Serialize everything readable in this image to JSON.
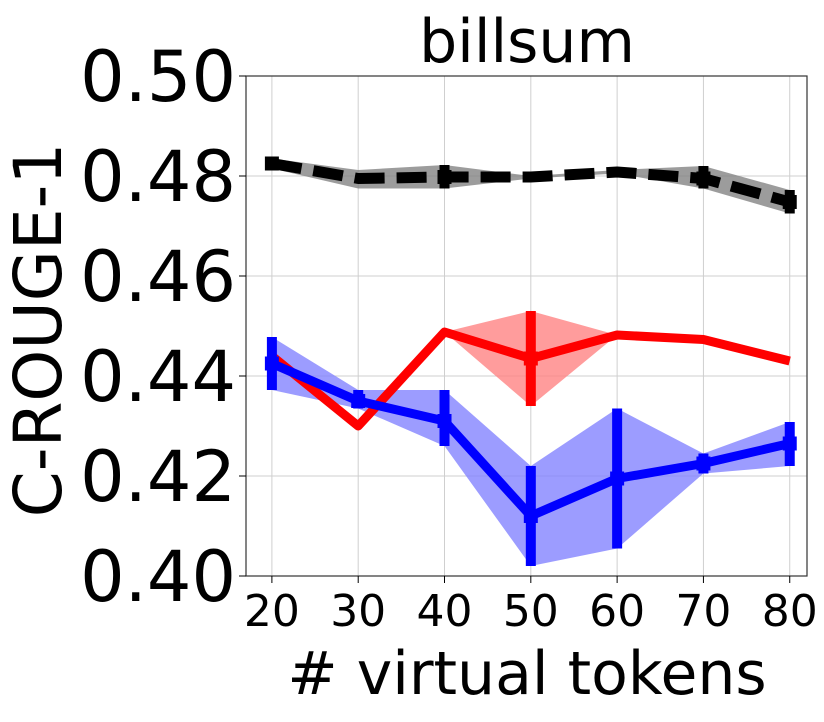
{
  "chart_data": {
    "type": "line",
    "title": "billsum",
    "xlabel": "# virtual tokens",
    "ylabel": "C-ROUGE-1",
    "x": [
      20,
      30,
      40,
      50,
      60,
      70,
      80
    ],
    "xlim": [
      17,
      82
    ],
    "ylim": [
      0.4,
      0.5
    ],
    "xticks": [
      "20",
      "30",
      "40",
      "50",
      "60",
      "70",
      "80"
    ],
    "yticks": [
      "0.40",
      "0.42",
      "0.44",
      "0.46",
      "0.48",
      "0.50"
    ],
    "grid": true,
    "series": [
      {
        "color": "#000000",
        "band_color": "#808080",
        "style": "dashed",
        "values": [
          0.4825,
          0.4795,
          0.4798,
          0.4798,
          0.4808,
          0.4795,
          0.4748
        ],
        "lower": [
          0.4815,
          0.4775,
          0.4775,
          0.4795,
          0.4805,
          0.4775,
          0.4725
        ],
        "upper": [
          0.4835,
          0.4812,
          0.4822,
          0.48,
          0.4812,
          0.482,
          0.4772
        ],
        "error_bars": [
          true,
          false,
          true,
          false,
          false,
          true,
          true
        ]
      },
      {
        "color": "#ff0000",
        "band_color": "#ff8080",
        "style": "solid",
        "values": [
          0.444,
          0.43,
          0.4488,
          0.4435,
          0.4482,
          0.4473,
          0.443
        ],
        "lower": [
          0.444,
          0.43,
          0.4488,
          0.434,
          0.4482,
          0.4473,
          0.443
        ],
        "upper": [
          0.444,
          0.43,
          0.4488,
          0.453,
          0.4482,
          0.4473,
          0.443
        ],
        "error_bars": [
          false,
          false,
          false,
          true,
          false,
          false,
          false
        ]
      },
      {
        "color": "#0000ff",
        "band_color": "#8080ff",
        "style": "solid",
        "values": [
          0.4425,
          0.435,
          0.431,
          0.412,
          0.4195,
          0.4225,
          0.4265
        ],
        "lower": [
          0.4372,
          0.4335,
          0.426,
          0.402,
          0.4055,
          0.4205,
          0.422
        ],
        "upper": [
          0.4478,
          0.4372,
          0.4372,
          0.422,
          0.4335,
          0.4245,
          0.4308
        ],
        "error_bars": [
          true,
          true,
          true,
          true,
          true,
          true,
          true
        ]
      }
    ]
  }
}
